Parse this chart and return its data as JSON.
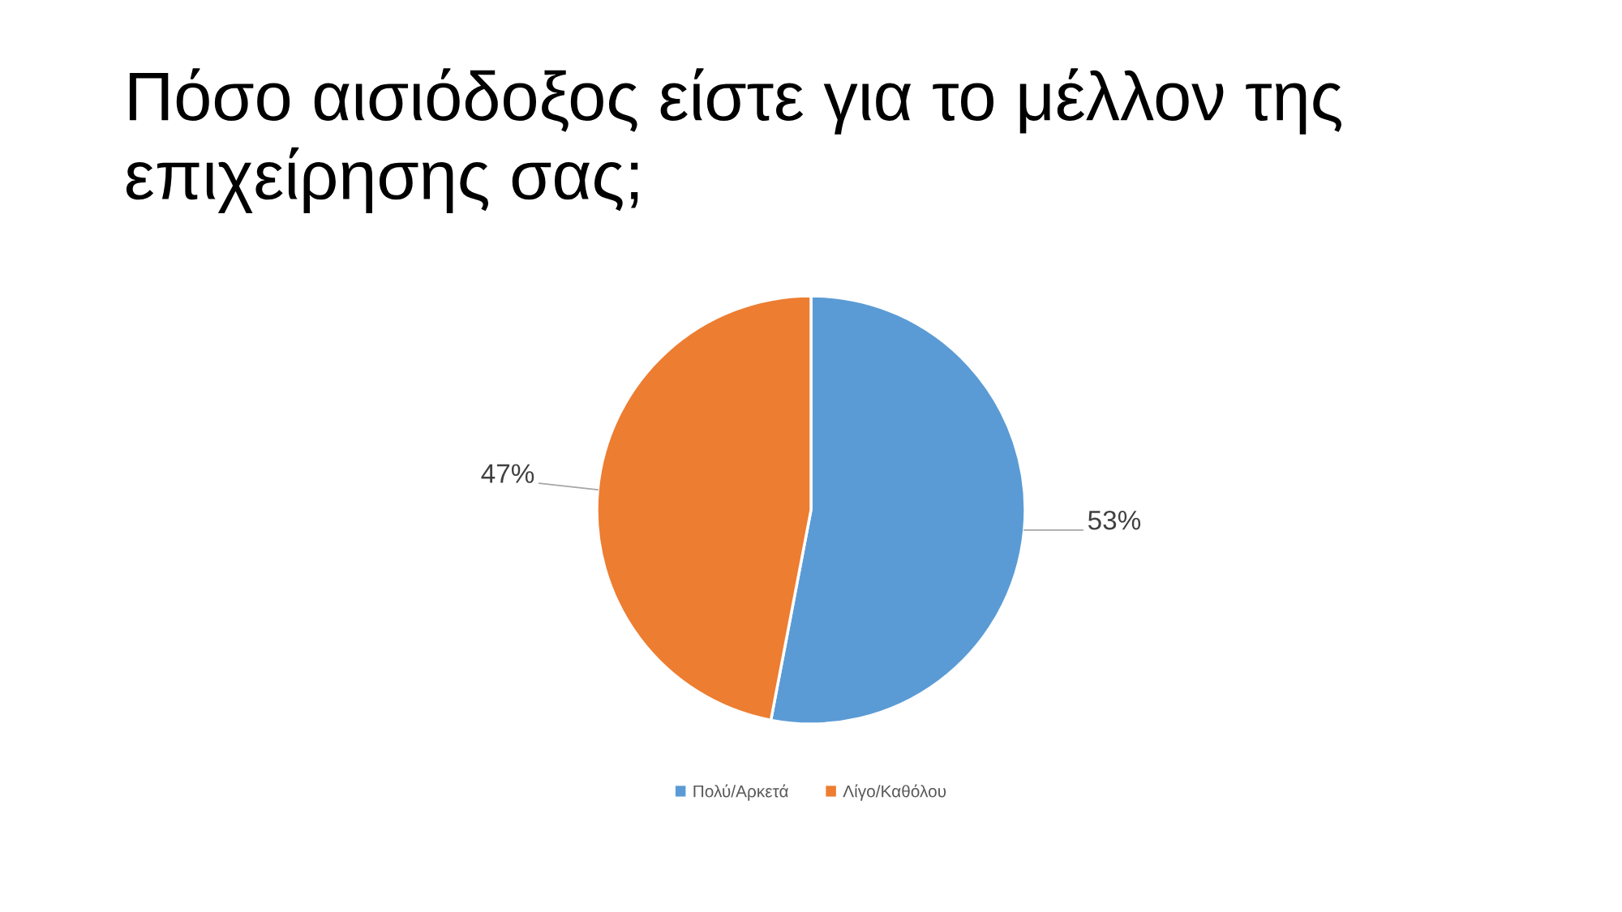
{
  "chart_data": {
    "type": "pie",
    "title": "Πόσο αισιόδοξος είστε για το μέλλον της επιχείρησης σας;",
    "categories": [
      "Πολύ/Αρκετά",
      "Λίγο/Καθόλου"
    ],
    "values": [
      53,
      47
    ],
    "colors": [
      "#5b9bd5",
      "#ed7d31"
    ],
    "value_labels": [
      "53%",
      "47%"
    ],
    "legend": "bottom"
  }
}
